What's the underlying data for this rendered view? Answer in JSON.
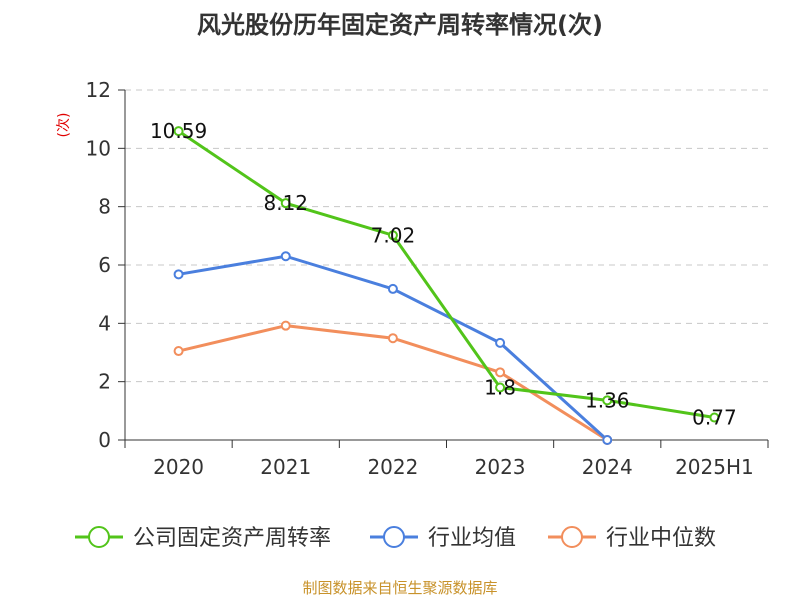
{
  "chart_data": {
    "type": "line",
    "title": "风光股份历年固定资产周转率情况(次)",
    "ylabel": "(次)",
    "xlabel": "",
    "ylim": [
      0,
      12
    ],
    "yticks": [
      "0",
      "2",
      "4",
      "6",
      "8",
      "10",
      "12"
    ],
    "categories": [
      "2020",
      "2021",
      "2022",
      "2023",
      "2024",
      "2025H1"
    ],
    "grid": true,
    "legend_position": "bottom",
    "series": [
      {
        "name": "公司固定资产周转率",
        "color": "#52c41a",
        "values": [
          10.59,
          8.12,
          7.02,
          1.8,
          1.36,
          0.77
        ],
        "labels": [
          "10.59",
          "8.12",
          "7.02",
          "1.8",
          "1.36",
          "0.77"
        ]
      },
      {
        "name": "行业均值",
        "color": "#4a7fde",
        "values": [
          5.68,
          6.3,
          5.18,
          3.33,
          0.0,
          null
        ]
      },
      {
        "name": "行业中位数",
        "color": "#f28e5c",
        "values": [
          3.05,
          3.92,
          3.49,
          2.32,
          0.0,
          null
        ]
      }
    ],
    "source": "制图数据来自恒生聚源数据库"
  }
}
